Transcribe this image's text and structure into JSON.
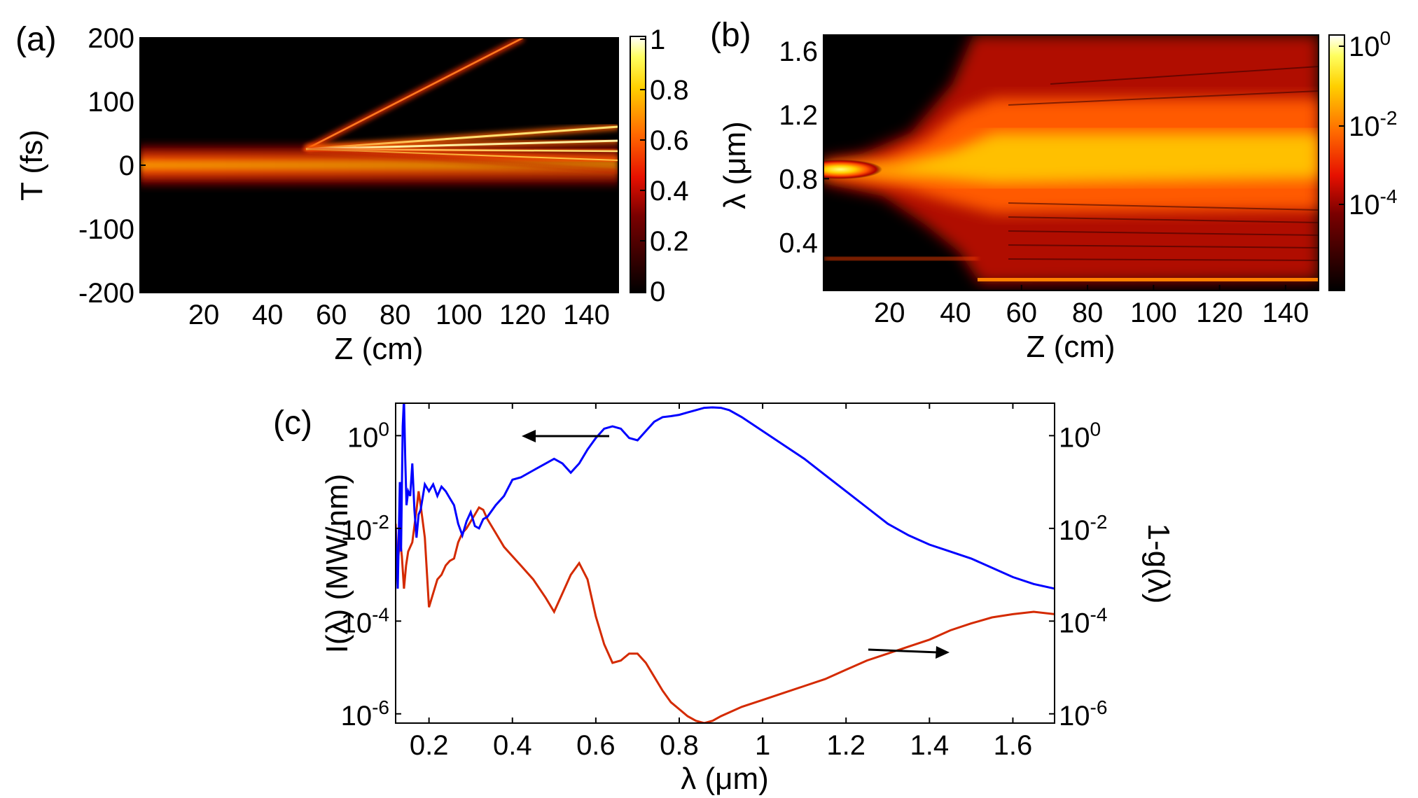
{
  "chart_data": [
    {
      "panel": "(a)",
      "type": "heatmap",
      "xlabel": "Z (cm)",
      "ylabel": "T (fs)",
      "xlim": [
        0,
        150
      ],
      "ylim": [
        -200,
        200
      ],
      "xticks": [
        20,
        40,
        60,
        80,
        100,
        120,
        140
      ],
      "yticks": [
        200,
        100,
        0,
        -100,
        -200
      ],
      "colorbar": {
        "scale": "linear",
        "range": [
          0,
          1
        ],
        "ticks": [
          "1",
          "0.8",
          "0.6",
          "0.4",
          "0.2",
          "0"
        ]
      },
      "colormap": "hot",
      "features": {
        "input_pulse_center_fs": 0,
        "input_pulse_halfwidth_fs": 40,
        "fission_point": {
          "z_cm": 52,
          "t_fs": 15
        },
        "ejected_soliton": {
          "from": [
            52,
            15
          ],
          "to": [
            120,
            200
          ]
        },
        "soliton_tracks_end_t_fs": [
          60,
          38,
          22,
          8,
          -10
        ]
      }
    },
    {
      "panel": "(b)",
      "type": "heatmap",
      "xlabel": "Z (cm)",
      "ylabel": "λ (μm)",
      "xlim": [
        0,
        150
      ],
      "ylim": [
        0.1,
        1.7
      ],
      "xticks": [
        20,
        40,
        60,
        80,
        100,
        120,
        140
      ],
      "yticks": [
        1.6,
        1.2,
        0.8,
        0.4
      ],
      "colorbar": {
        "scale": "log",
        "ticks": [
          "10^0",
          "10^-2",
          "10^-4"
        ]
      },
      "colormap": "hot",
      "features": {
        "pump_wavelength_um": 0.8,
        "third_harmonic_um": 0.27,
        "broadening_onset_z_cm": 50,
        "uv_edge_um": 0.15
      }
    },
    {
      "panel": "(c)",
      "type": "line",
      "xlabel": "λ (μm)",
      "ylabel": "I(λ) (MW/nm)",
      "ylabel_right": "1-g(λ)",
      "xlim": [
        0.12,
        1.7
      ],
      "ylim_log10": [
        -6.2,
        0.7
      ],
      "xticks": [
        "0.2",
        "0.4",
        "0.6",
        "0.8",
        "1",
        "1.2",
        "1.4",
        "1.6"
      ],
      "yticks_left": [
        "10^0",
        "10^-2",
        "10^-4",
        "10^-6"
      ],
      "yticks_right": [
        "10^0",
        "10^-2",
        "10^-4",
        "10^-6"
      ],
      "series": [
        {
          "name": "I(λ)",
          "axis": "left",
          "color": "#0000ff",
          "x": [
            0.12,
            0.125,
            0.13,
            0.133,
            0.137,
            0.14,
            0.143,
            0.146,
            0.15,
            0.155,
            0.16,
            0.165,
            0.17,
            0.175,
            0.18,
            0.19,
            0.2,
            0.21,
            0.22,
            0.23,
            0.24,
            0.25,
            0.26,
            0.27,
            0.28,
            0.29,
            0.3,
            0.31,
            0.32,
            0.33,
            0.34,
            0.36,
            0.38,
            0.4,
            0.42,
            0.45,
            0.48,
            0.5,
            0.52,
            0.54,
            0.56,
            0.58,
            0.6,
            0.62,
            0.64,
            0.66,
            0.68,
            0.7,
            0.72,
            0.74,
            0.76,
            0.78,
            0.8,
            0.82,
            0.84,
            0.86,
            0.88,
            0.9,
            0.92,
            0.95,
            1.0,
            1.05,
            1.1,
            1.15,
            1.2,
            1.25,
            1.3,
            1.35,
            1.4,
            1.45,
            1.5,
            1.55,
            1.6,
            1.65,
            1.7
          ],
          "log10_y": [
            -2.0,
            -3.3,
            -1.0,
            -2.5,
            0.2,
            0.8,
            -0.5,
            -1.5,
            -1.2,
            -1.3,
            -0.6,
            -1.6,
            -2.2,
            -1.7,
            -1.6,
            -1.05,
            -1.2,
            -1.05,
            -1.3,
            -1.1,
            -1.2,
            -1.35,
            -1.5,
            -1.9,
            -2.15,
            -1.85,
            -1.65,
            -1.95,
            -2.0,
            -1.8,
            -1.75,
            -1.5,
            -1.3,
            -0.95,
            -0.9,
            -0.75,
            -0.6,
            -0.5,
            -0.6,
            -0.8,
            -0.6,
            -0.3,
            -0.05,
            0.15,
            0.2,
            0.15,
            -0.05,
            -0.1,
            0.1,
            0.3,
            0.4,
            0.42,
            0.45,
            0.5,
            0.55,
            0.6,
            0.61,
            0.6,
            0.55,
            0.4,
            0.1,
            -0.2,
            -0.5,
            -0.85,
            -1.2,
            -1.55,
            -1.9,
            -2.15,
            -2.35,
            -2.5,
            -2.65,
            -2.85,
            -3.05,
            -3.2,
            -3.3
          ]
        },
        {
          "name": "1-g(λ)",
          "axis": "right",
          "color": "#d42a00",
          "x": [
            0.12,
            0.125,
            0.13,
            0.135,
            0.14,
            0.145,
            0.15,
            0.16,
            0.17,
            0.175,
            0.18,
            0.19,
            0.2,
            0.21,
            0.22,
            0.23,
            0.24,
            0.25,
            0.26,
            0.27,
            0.28,
            0.29,
            0.3,
            0.31,
            0.32,
            0.33,
            0.34,
            0.36,
            0.38,
            0.4,
            0.42,
            0.45,
            0.48,
            0.5,
            0.52,
            0.54,
            0.56,
            0.58,
            0.6,
            0.62,
            0.64,
            0.66,
            0.68,
            0.7,
            0.72,
            0.74,
            0.76,
            0.78,
            0.8,
            0.82,
            0.84,
            0.86,
            0.88,
            0.9,
            0.95,
            1.0,
            1.05,
            1.1,
            1.15,
            1.2,
            1.25,
            1.3,
            1.35,
            1.4,
            1.45,
            1.5,
            1.55,
            1.6,
            1.65,
            1.7
          ],
          "log10_y": [
            -1.9,
            -2.8,
            -2.2,
            -2.6,
            -3.3,
            -2.8,
            -2.5,
            -2.3,
            -1.6,
            -1.2,
            -1.5,
            -2.2,
            -3.7,
            -3.4,
            -3.1,
            -3.0,
            -2.8,
            -2.7,
            -2.65,
            -2.3,
            -2.1,
            -2.0,
            -1.85,
            -1.7,
            -1.55,
            -1.6,
            -1.8,
            -2.1,
            -2.4,
            -2.6,
            -2.8,
            -3.1,
            -3.5,
            -3.8,
            -3.4,
            -3.0,
            -2.75,
            -3.1,
            -3.9,
            -4.5,
            -4.9,
            -4.85,
            -4.7,
            -4.7,
            -4.9,
            -5.2,
            -5.5,
            -5.75,
            -5.9,
            -6.05,
            -6.15,
            -6.2,
            -6.15,
            -6.05,
            -5.85,
            -5.7,
            -5.55,
            -5.4,
            -5.25,
            -5.05,
            -4.85,
            -4.7,
            -4.55,
            -4.4,
            -4.2,
            -4.05,
            -3.92,
            -3.85,
            -3.8,
            -3.85
          ]
        }
      ],
      "annotations": [
        {
          "type": "arrow",
          "direction": "left",
          "meaning": "blue curve uses left axis"
        },
        {
          "type": "arrow",
          "direction": "right",
          "meaning": "red curve uses right axis"
        }
      ]
    }
  ]
}
